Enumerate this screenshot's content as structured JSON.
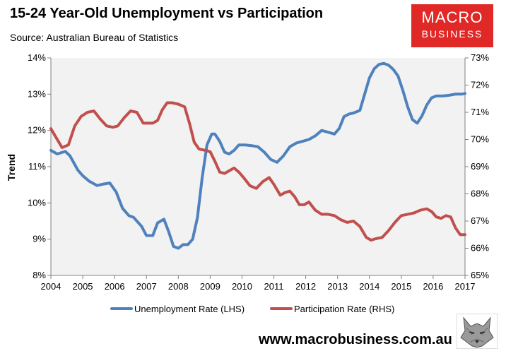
{
  "header": {
    "title": "15-24 Year-Old Unemployment vs Participation",
    "source": "Source: Australian Bureau of Statistics"
  },
  "logo": {
    "line1": "MACRO",
    "line2": "BUSINESS"
  },
  "footer": {
    "website": "www.macrobusiness.com.au"
  },
  "colors": {
    "unemployment": "#4f81bd",
    "participation": "#c0504d",
    "plot_bg": "#f2f2f2",
    "logo_bg": "#e02826"
  },
  "icons": {
    "footer_logo": "wolf-icon"
  },
  "chart_data": {
    "type": "line",
    "title": "15-24 Year-Old Unemployment vs Participation",
    "xlabel": "",
    "ylabel": "Trend",
    "y_left_lim": [
      8,
      14
    ],
    "y_right_lim": [
      65,
      73
    ],
    "x_lim": [
      2004,
      2017
    ],
    "x_ticks": [
      "2004",
      "2005",
      "2006",
      "2007",
      "2008",
      "2009",
      "2010",
      "2011",
      "2012",
      "2013",
      "2014",
      "2015",
      "2016",
      "2017"
    ],
    "y_left_ticks": [
      "8%",
      "9%",
      "10%",
      "11%",
      "12%",
      "13%",
      "14%"
    ],
    "y_right_ticks": [
      "65%",
      "66%",
      "67%",
      "68%",
      "69%",
      "70%",
      "71%",
      "72%",
      "73%"
    ],
    "grid": false,
    "legend_position": "bottom",
    "series": [
      {
        "name": "Unemployment Rate (LHS)",
        "axis": "left",
        "x": [
          2004.0,
          2004.2,
          2004.45,
          2004.6,
          2004.85,
          2005.0,
          2005.2,
          2005.45,
          2005.65,
          2005.85,
          2006.05,
          2006.25,
          2006.45,
          2006.6,
          2006.85,
          2007.0,
          2007.2,
          2007.35,
          2007.55,
          2007.7,
          2007.85,
          2008.0,
          2008.15,
          2008.3,
          2008.45,
          2008.6,
          2008.75,
          2008.9,
          2009.05,
          2009.15,
          2009.3,
          2009.45,
          2009.6,
          2009.75,
          2009.9,
          2010.1,
          2010.3,
          2010.5,
          2010.7,
          2010.9,
          2011.1,
          2011.3,
          2011.5,
          2011.7,
          2011.9,
          2012.1,
          2012.3,
          2012.5,
          2012.7,
          2012.9,
          2013.05,
          2013.2,
          2013.35,
          2013.5,
          2013.7,
          2013.85,
          2014.0,
          2014.15,
          2014.3,
          2014.45,
          2014.6,
          2014.75,
          2014.9,
          2015.05,
          2015.2,
          2015.35,
          2015.5,
          2015.65,
          2015.8,
          2015.95,
          2016.1,
          2016.3,
          2016.5,
          2016.7,
          2016.9,
          2017.0
        ],
        "values": [
          11.45,
          11.35,
          11.42,
          11.3,
          10.9,
          10.75,
          10.6,
          10.48,
          10.52,
          10.55,
          10.3,
          9.85,
          9.65,
          9.6,
          9.35,
          9.1,
          9.1,
          9.45,
          9.55,
          9.2,
          8.8,
          8.75,
          8.85,
          8.85,
          9.0,
          9.6,
          10.7,
          11.6,
          11.9,
          11.9,
          11.7,
          11.4,
          11.35,
          11.45,
          11.6,
          11.6,
          11.58,
          11.55,
          11.4,
          11.2,
          11.12,
          11.3,
          11.55,
          11.65,
          11.7,
          11.75,
          11.85,
          12.0,
          11.95,
          11.9,
          12.05,
          12.38,
          12.45,
          12.48,
          12.55,
          13.0,
          13.45,
          13.7,
          13.82,
          13.85,
          13.8,
          13.68,
          13.5,
          13.1,
          12.65,
          12.3,
          12.2,
          12.4,
          12.7,
          12.9,
          12.95,
          12.95,
          12.97,
          13.0,
          13.0,
          13.02
        ]
      },
      {
        "name": "Participation Rate (RHS)",
        "axis": "right",
        "x": [
          2004.0,
          2004.15,
          2004.35,
          2004.55,
          2004.75,
          2004.95,
          2005.15,
          2005.35,
          2005.55,
          2005.75,
          2005.95,
          2006.1,
          2006.3,
          2006.5,
          2006.7,
          2006.9,
          2007.05,
          2007.2,
          2007.35,
          2007.5,
          2007.65,
          2007.8,
          2008.0,
          2008.2,
          2008.35,
          2008.5,
          2008.65,
          2008.85,
          2009.0,
          2009.15,
          2009.3,
          2009.45,
          2009.6,
          2009.75,
          2009.9,
          2010.05,
          2010.25,
          2010.45,
          2010.65,
          2010.85,
          2011.0,
          2011.2,
          2011.35,
          2011.5,
          2011.65,
          2011.8,
          2011.95,
          2012.1,
          2012.3,
          2012.5,
          2012.7,
          2012.9,
          2013.1,
          2013.3,
          2013.5,
          2013.7,
          2013.9,
          2014.05,
          2014.2,
          2014.4,
          2014.6,
          2014.8,
          2015.0,
          2015.2,
          2015.4,
          2015.6,
          2015.8,
          2015.95,
          2016.1,
          2016.25,
          2016.4,
          2016.55,
          2016.7,
          2016.85,
          2017.0
        ],
        "values": [
          70.4,
          70.1,
          69.7,
          69.8,
          70.5,
          70.85,
          71.0,
          71.05,
          70.75,
          70.5,
          70.45,
          70.5,
          70.8,
          71.05,
          71.0,
          70.6,
          70.6,
          70.6,
          70.7,
          71.1,
          71.35,
          71.35,
          71.3,
          71.2,
          70.6,
          69.9,
          69.65,
          69.6,
          69.55,
          69.2,
          68.8,
          68.75,
          68.85,
          68.95,
          68.8,
          68.6,
          68.3,
          68.2,
          68.45,
          68.6,
          68.35,
          67.95,
          68.05,
          68.1,
          67.9,
          67.6,
          67.6,
          67.7,
          67.4,
          67.25,
          67.25,
          67.2,
          67.05,
          66.95,
          67.0,
          66.8,
          66.4,
          66.3,
          66.35,
          66.4,
          66.65,
          66.95,
          67.2,
          67.25,
          67.3,
          67.4,
          67.45,
          67.35,
          67.15,
          67.1,
          67.2,
          67.15,
          66.75,
          66.5,
          66.5
        ]
      }
    ]
  }
}
